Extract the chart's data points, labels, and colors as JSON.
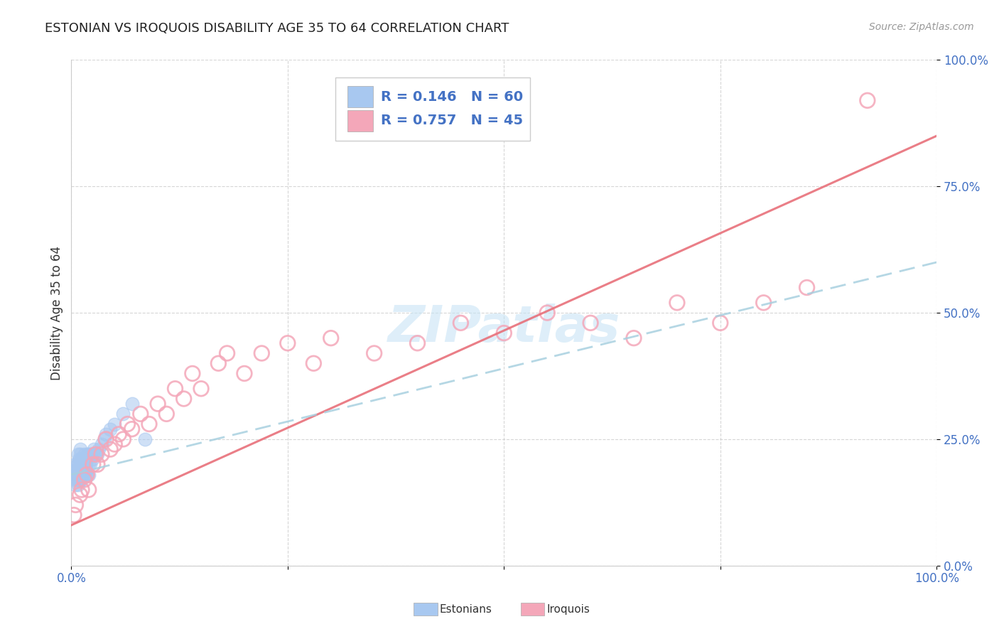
{
  "title": "ESTONIAN VS IROQUOIS DISABILITY AGE 35 TO 64 CORRELATION CHART",
  "ylabel": "Disability Age 35 to 64",
  "source_text": "Source: ZipAtlas.com",
  "xlim": [
    0.0,
    1.0
  ],
  "ylim": [
    0.0,
    1.0
  ],
  "xticks": [
    0.0,
    0.25,
    0.5,
    0.75,
    1.0
  ],
  "yticks": [
    0.0,
    0.25,
    0.5,
    0.75,
    1.0
  ],
  "xticklabels": [
    "0.0%",
    "",
    "",
    "",
    "100.0%"
  ],
  "yticklabels": [
    "0.0%",
    "25.0%",
    "50.0%",
    "75.0%",
    "100.0%"
  ],
  "watermark_text": "ZIPatlas",
  "legend_R_blue": "R = 0.146",
  "legend_N_blue": "N = 60",
  "legend_R_pink": "R = 0.757",
  "legend_N_pink": "N = 45",
  "blue_scatter_color": "#A8C8F0",
  "pink_scatter_color": "#F4A7B9",
  "blue_line_color": "#A8D0E0",
  "pink_line_color": "#E8707A",
  "tick_color": "#4472C4",
  "legend_text_color": "#4472C4",
  "estonian_x": [
    0.005,
    0.005,
    0.005,
    0.005,
    0.005,
    0.007,
    0.007,
    0.007,
    0.007,
    0.008,
    0.008,
    0.008,
    0.008,
    0.009,
    0.009,
    0.009,
    0.01,
    0.01,
    0.01,
    0.01,
    0.01,
    0.01,
    0.01,
    0.012,
    0.012,
    0.012,
    0.013,
    0.013,
    0.014,
    0.014,
    0.015,
    0.015,
    0.015,
    0.016,
    0.016,
    0.017,
    0.017,
    0.018,
    0.018,
    0.019,
    0.019,
    0.02,
    0.02,
    0.02,
    0.022,
    0.022,
    0.024,
    0.025,
    0.026,
    0.028,
    0.03,
    0.032,
    0.035,
    0.038,
    0.04,
    0.045,
    0.05,
    0.06,
    0.07,
    0.085
  ],
  "estonian_y": [
    0.16,
    0.17,
    0.18,
    0.19,
    0.2,
    0.17,
    0.18,
    0.19,
    0.2,
    0.16,
    0.18,
    0.2,
    0.22,
    0.17,
    0.19,
    0.21,
    0.17,
    0.18,
    0.19,
    0.2,
    0.21,
    0.22,
    0.23,
    0.17,
    0.19,
    0.21,
    0.18,
    0.2,
    0.19,
    0.21,
    0.18,
    0.2,
    0.22,
    0.19,
    0.21,
    0.18,
    0.2,
    0.19,
    0.21,
    0.18,
    0.22,
    0.18,
    0.2,
    0.22,
    0.2,
    0.22,
    0.21,
    0.22,
    0.23,
    0.22,
    0.22,
    0.23,
    0.24,
    0.25,
    0.26,
    0.27,
    0.28,
    0.3,
    0.32,
    0.25
  ],
  "iroquois_x": [
    0.003,
    0.005,
    0.01,
    0.012,
    0.015,
    0.018,
    0.02,
    0.025,
    0.028,
    0.03,
    0.035,
    0.04,
    0.045,
    0.05,
    0.055,
    0.06,
    0.065,
    0.07,
    0.08,
    0.09,
    0.1,
    0.11,
    0.12,
    0.13,
    0.14,
    0.15,
    0.17,
    0.18,
    0.2,
    0.22,
    0.25,
    0.28,
    0.3,
    0.35,
    0.4,
    0.45,
    0.5,
    0.55,
    0.6,
    0.65,
    0.7,
    0.75,
    0.8,
    0.85,
    0.92
  ],
  "iroquois_y": [
    0.1,
    0.12,
    0.14,
    0.15,
    0.17,
    0.18,
    0.15,
    0.2,
    0.22,
    0.2,
    0.22,
    0.25,
    0.23,
    0.24,
    0.26,
    0.25,
    0.28,
    0.27,
    0.3,
    0.28,
    0.32,
    0.3,
    0.35,
    0.33,
    0.38,
    0.35,
    0.4,
    0.42,
    0.38,
    0.42,
    0.44,
    0.4,
    0.45,
    0.42,
    0.44,
    0.48,
    0.46,
    0.5,
    0.48,
    0.45,
    0.52,
    0.48,
    0.52,
    0.55,
    0.92
  ],
  "pink_trendline_start_y": 0.08,
  "pink_trendline_end_y": 0.85,
  "blue_trendline_start_y": 0.18,
  "blue_trendline_end_y": 0.6
}
